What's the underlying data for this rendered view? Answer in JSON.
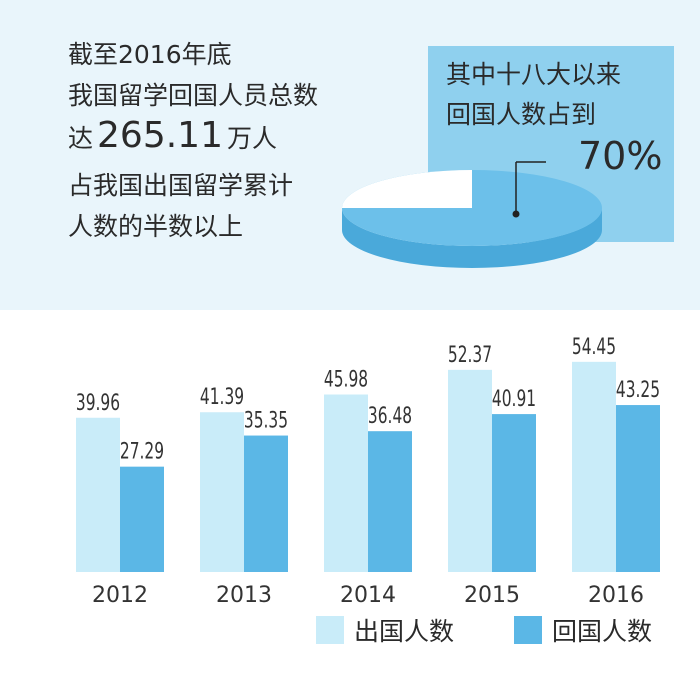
{
  "header": {
    "line1": "截至2016年底",
    "line2": "我国留学回国人员总数",
    "line3_pre": "达",
    "line3_num": "265.11",
    "line3_post": "万人",
    "line4": "占我国出国留学累计",
    "line5": "人数的半数以上"
  },
  "highlight": {
    "line1": "其中十八大以来",
    "line2": "回国人数占到",
    "percent": "70%"
  },
  "pie": {
    "returned_share": 70,
    "colors": {
      "share": "#6cc0ea",
      "rest": "#ffffff"
    }
  },
  "legend": [
    {
      "label": "出国人数",
      "color": "#c9ecf9"
    },
    {
      "label": "回国人数",
      "color": "#5bb7e6"
    }
  ],
  "chart_data": {
    "type": "bar",
    "categories": [
      "2012",
      "2013",
      "2014",
      "2015",
      "2016"
    ],
    "series": [
      {
        "name": "出国人数",
        "values": [
          39.96,
          41.39,
          45.98,
          52.37,
          54.45
        ],
        "labels": [
          "39.96",
          "41.39",
          "45.98",
          "52.37",
          "54.45"
        ],
        "color": "#c9ecf9"
      },
      {
        "name": "回国人数",
        "values": [
          27.29,
          35.35,
          36.48,
          40.91,
          43.25
        ],
        "labels": [
          "27.29",
          "35.35",
          "36.48",
          "40.91",
          "43.25"
        ],
        "color": "#5bb7e6"
      }
    ],
    "title": "",
    "xlabel": "",
    "ylabel": "",
    "grid": false
  }
}
